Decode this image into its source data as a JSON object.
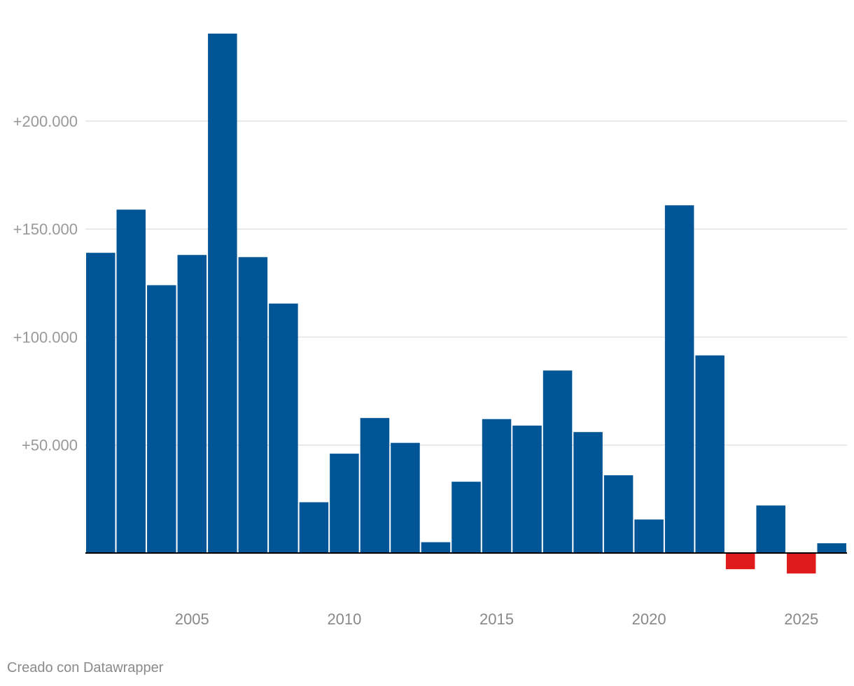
{
  "chart_data": {
    "type": "bar",
    "title": "",
    "xlabel": "",
    "ylabel": "",
    "categories": [
      "2002",
      "2003",
      "2004",
      "2005",
      "2006",
      "2007",
      "2008",
      "2009",
      "2010",
      "2011",
      "2012",
      "2013",
      "2014",
      "2015",
      "2016",
      "2017",
      "2018",
      "2019",
      "2020",
      "2021",
      "2022",
      "2023",
      "2024",
      "2025",
      "2026"
    ],
    "values": [
      139000,
      159000,
      124000,
      138000,
      240500,
      137000,
      115500,
      23500,
      46000,
      62500,
      51000,
      5000,
      33000,
      62000,
      59000,
      84500,
      56000,
      36000,
      15500,
      161000,
      91500,
      -7500,
      22000,
      -9500,
      4500
    ],
    "ylim": [
      -15000,
      240500
    ],
    "y_ticks": [
      {
        "value": 50000,
        "label": "+50.000"
      },
      {
        "value": 100000,
        "label": "+100.000"
      },
      {
        "value": 150000,
        "label": "+150.000"
      },
      {
        "value": 200000,
        "label": "+200.000"
      }
    ],
    "x_ticks": [
      {
        "value": 2005,
        "label": "2005"
      },
      {
        "value": 2010,
        "label": "2010"
      },
      {
        "value": 2015,
        "label": "2015"
      },
      {
        "value": 2020,
        "label": "2020"
      },
      {
        "value": 2025,
        "label": "2025"
      }
    ],
    "grid": true,
    "colors": {
      "positive": "#005596",
      "negative": "#e01b1b",
      "grid": "#e2e2e2",
      "axis": "#000000"
    }
  },
  "footer": {
    "credit": "Creado con Datawrapper"
  }
}
